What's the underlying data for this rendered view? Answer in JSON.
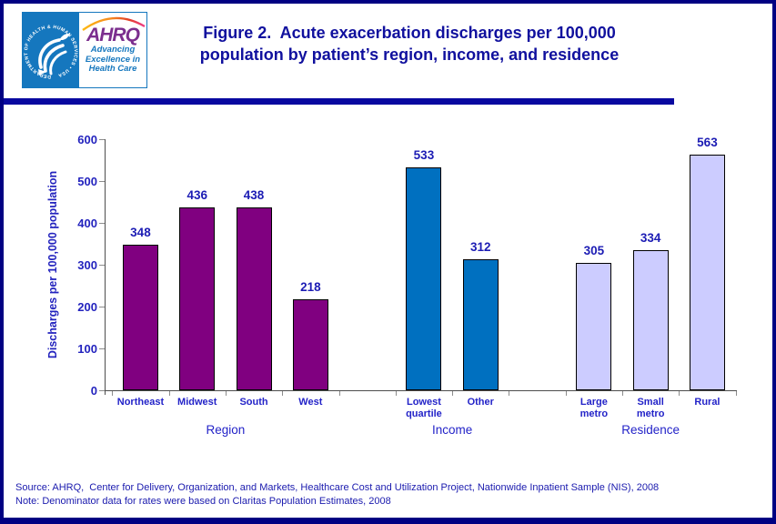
{
  "header": {
    "title_line1": "Figure 2.  Acute exacerbation discharges per 100,000",
    "title_line2": "population by patient’s region, income, and residence",
    "title_color": "#10109E"
  },
  "logo": {
    "hhs_circle_text": "DEPARTMENT OF HEALTH & HUMAN SERVICES • USA",
    "ahrq_acronym": "AHRQ",
    "tagline_line1": "Advancing",
    "tagline_line2": "Excellence in",
    "tagline_line3": "Health Care",
    "panel_blue": "#1577BE",
    "ahrq_purple": "#7B2E8E"
  },
  "chart_data": {
    "type": "bar",
    "title": "Figure 2. Acute exacerbation discharges per 100,000 population by patient’s region, income, and residence",
    "ylabel": "Discharges per 100,000 population",
    "ylim": [
      0,
      600
    ],
    "ytick_step": 100,
    "grid": false,
    "legend": "none",
    "groups": [
      {
        "label": "Region",
        "bar_color": "#800080",
        "categories": [
          "Northeast",
          "Midwest",
          "South",
          "West"
        ],
        "values": [
          348,
          436,
          438,
          218
        ]
      },
      {
        "label": "Income",
        "bar_color": "#0070C0",
        "categories": [
          "Lowest\nquartile",
          "Other"
        ],
        "values": [
          533,
          312
        ]
      },
      {
        "label": "Residence",
        "bar_color": "#CCCCFF",
        "categories": [
          "Large\nmetro",
          "Small\nmetro",
          "Rural"
        ],
        "values": [
          305,
          334,
          563
        ]
      }
    ]
  },
  "footer": {
    "source_line": "Source: AHRQ,  Center for Delivery, Organization, and Markets, Healthcare Cost and Utilization Project, Nationwide Inpatient Sample (NIS), 2008",
    "note_line": "Note: Denominator data for rates were based on Claritas Population Estimates, 2008",
    "text_color": "#1A1AAE"
  }
}
